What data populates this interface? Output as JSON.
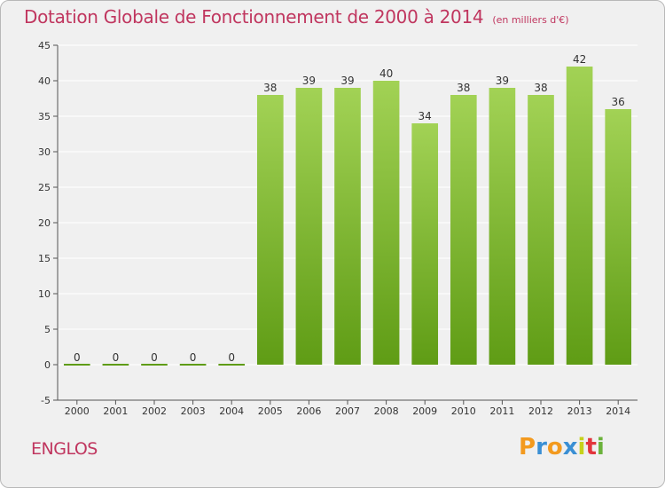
{
  "title": "Dotation Globale de Fonctionnement de 2000 à 2014",
  "subtitle": "(en milliers d'€)",
  "commune": "ENGLOS",
  "logo": {
    "letters": [
      "P",
      "r",
      "o",
      "x",
      "i",
      "t",
      "i"
    ],
    "colors": [
      "#f39a1e",
      "#3a8fd4",
      "#f39a1e",
      "#3a8fd4",
      "#c6d21b",
      "#e2353c",
      "#6bb23b"
    ]
  },
  "colors": {
    "title": "#c0365f",
    "bar_top": "#a2d255",
    "bar_bottom": "#5f9c15",
    "grid": "#ffffff",
    "background": "#f0f0f0"
  },
  "chart_data": {
    "type": "bar",
    "categories": [
      "2000",
      "2001",
      "2002",
      "2003",
      "2004",
      "2005",
      "2006",
      "2007",
      "2008",
      "2009",
      "2010",
      "2011",
      "2012",
      "2013",
      "2014"
    ],
    "values": [
      0,
      0,
      0,
      0,
      0,
      38,
      39,
      39,
      40,
      34,
      38,
      39,
      38,
      42,
      36
    ],
    "ylim": [
      -5,
      45
    ],
    "yticks": [
      "-5",
      "0",
      "5",
      "10",
      "15",
      "20",
      "25",
      "30",
      "35",
      "40",
      "45"
    ],
    "grid": "horizontal",
    "xlabel": "",
    "ylabel": ""
  }
}
